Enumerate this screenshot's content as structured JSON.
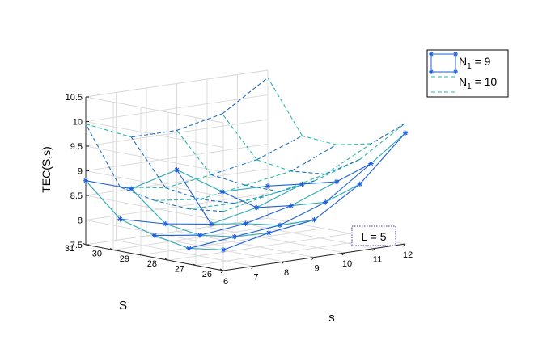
{
  "chart_data": {
    "type": "surface-3d",
    "zlabel": "TEC(S,s)",
    "xlabel": "s",
    "ylabel": "S",
    "x_ticks": [
      "6",
      "7",
      "8",
      "9",
      "10",
      "11",
      "12"
    ],
    "y_ticks": [
      "26",
      "27",
      "28",
      "29",
      "30",
      "31"
    ],
    "z_ticks": [
      "7.5",
      "8",
      "8.5",
      "9",
      "9.5",
      "10",
      "10.5"
    ],
    "xlim": [
      6,
      12
    ],
    "ylim": [
      26,
      31
    ],
    "zlim": [
      7.5,
      10.5
    ],
    "grid": true,
    "legend_position": "top-right, outside plot",
    "annotation": "L = 5",
    "s_values": [
      6,
      7.5,
      9,
      10.5,
      12
    ],
    "S_values": [
      26,
      27.25,
      28.5,
      29.75,
      31
    ],
    "series": [
      {
        "name": "N₁ = 9",
        "legend_main": "N",
        "legend_sub": "1",
        "legend_rest": " = 9",
        "color": "#1f5fd6",
        "line_style": "solid",
        "marker": "asterisk",
        "z": [
          [
            7.92,
            8.13,
            8.26,
            8.85,
            9.75
          ],
          [
            7.82,
            7.92,
            8.02,
            8.35,
            9.0
          ],
          [
            7.95,
            7.82,
            7.92,
            8.15,
            8.5
          ],
          [
            8.15,
            7.92,
            7.78,
            7.98,
            8.32
          ],
          [
            8.8,
            8.5,
            8.75,
            8.17,
            8.15
          ]
        ]
      },
      {
        "name": "N₁ = 10",
        "legend_main": "N",
        "legend_sub": "1",
        "legend_rest": " = 10",
        "color": "#2ab7a8",
        "line_style": "dashed",
        "marker": "none",
        "z": [
          [
            8.7,
            8.9,
            9.05,
            9.35,
            9.95
          ],
          [
            8.62,
            8.6,
            8.7,
            8.92,
            9.4
          ],
          [
            8.66,
            8.55,
            8.7,
            8.85,
            9.25
          ],
          [
            8.8,
            8.65,
            8.78,
            8.95,
            9.3
          ],
          [
            9.95,
            9.55,
            9.55,
            9.75,
            10.35
          ]
        ]
      }
    ]
  }
}
